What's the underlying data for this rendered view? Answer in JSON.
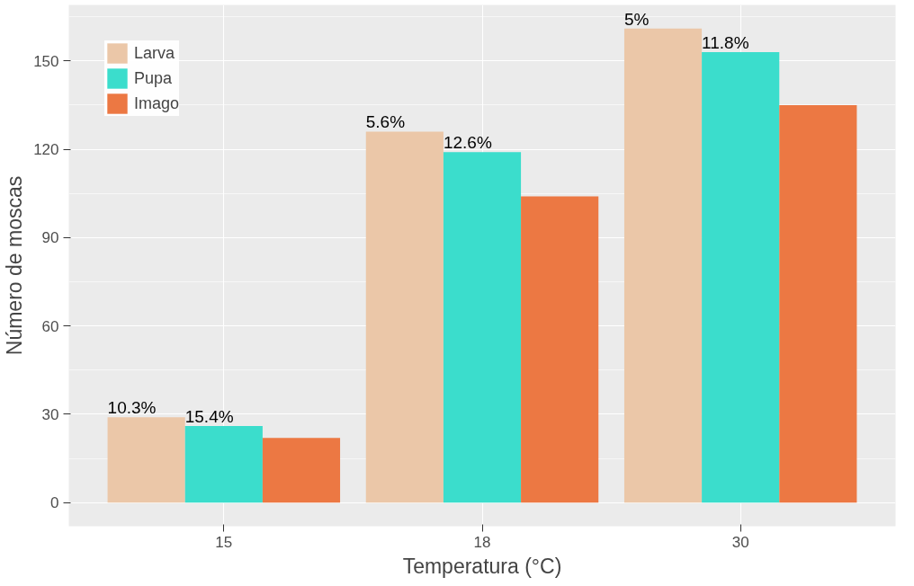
{
  "chart_data": {
    "type": "bar",
    "xlabel": "Temperatura (°C)",
    "ylabel": "Número de moscas",
    "categories": [
      "15",
      "18",
      "30"
    ],
    "series": [
      {
        "name": "Larva",
        "color": "#ebc7a8",
        "values": [
          29,
          126,
          161
        ]
      },
      {
        "name": "Pupa",
        "color": "#3bddcc",
        "values": [
          26,
          119,
          153
        ]
      },
      {
        "name": "Imago",
        "color": "#ec7843",
        "values": [
          22,
          104,
          135
        ]
      }
    ],
    "annotations": [
      "10.3%",
      "5.6%",
      "5%",
      "15.4%",
      "12.6%",
      "11.8%"
    ],
    "ylim": [
      -8,
      169
    ],
    "yticks": [
      0,
      30,
      60,
      90,
      120,
      150
    ],
    "grid": true,
    "legend": "top left"
  }
}
